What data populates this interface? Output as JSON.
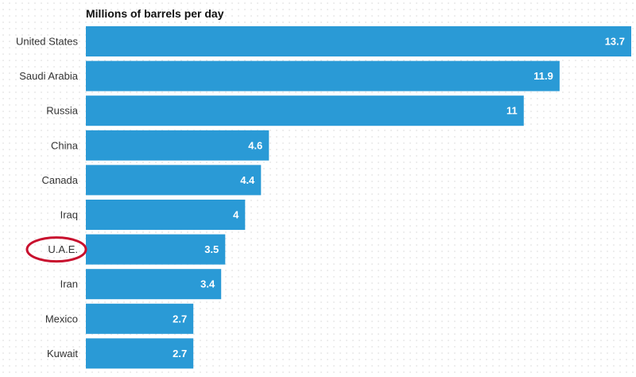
{
  "chart_data": {
    "type": "bar",
    "orientation": "horizontal",
    "title": "Millions of barrels per day",
    "categories": [
      "United States",
      "Saudi Arabia",
      "Russia",
      "China",
      "Canada",
      "Iraq",
      "U.A.E.",
      "Iran",
      "Mexico",
      "Kuwait"
    ],
    "values": [
      13.7,
      11.9,
      11,
      4.6,
      4.4,
      4,
      3.5,
      3.4,
      2.7,
      2.7
    ],
    "value_labels": [
      "13.7",
      "11.9",
      "11",
      "4.6",
      "4.4",
      "4",
      "3.5",
      "3.4",
      "2.7",
      "2.7"
    ],
    "xlim": [
      0,
      13.7
    ],
    "grid": false,
    "legend": "none",
    "highlight": {
      "category": "U.A.E.",
      "style": "red-ellipse-annotation",
      "color": "#c8102e"
    },
    "colors": {
      "bar": "#2a9ad6",
      "value_text": "#ffffff",
      "label_text": "#333333"
    }
  }
}
